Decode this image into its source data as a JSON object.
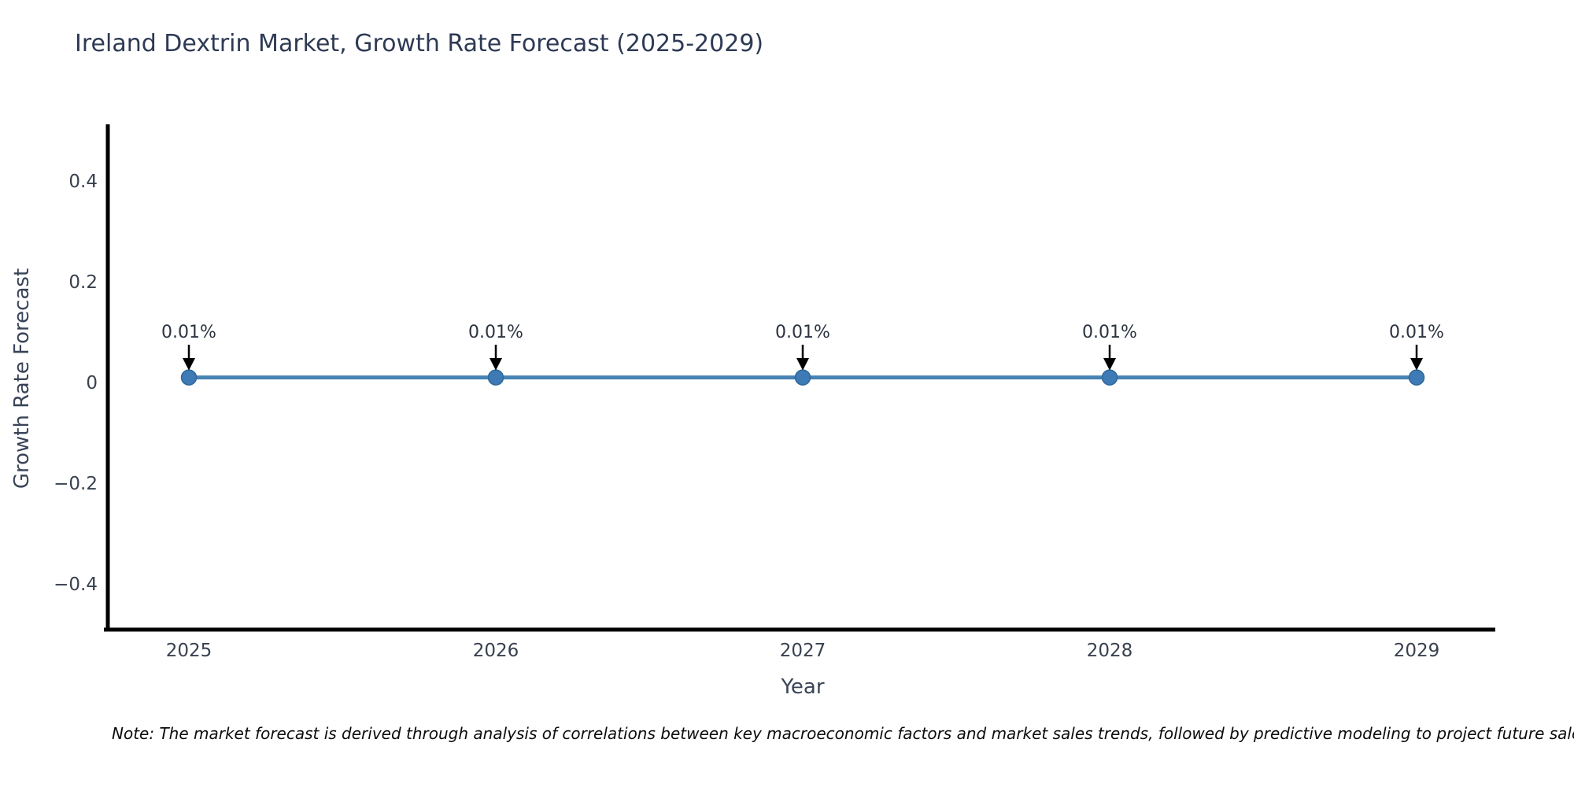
{
  "title": "Ireland Dextrin Market, Growth Rate Forecast (2025-2029)",
  "note": "Note: The market forecast is derived through analysis of correlations between key macroeconomic factors and market sales trends, followed by predictive modeling to project future sales",
  "chart_data": {
    "type": "line",
    "title": "Ireland Dextrin Market, Growth Rate Forecast (2025-2029)",
    "xlabel": "Year",
    "ylabel": "Growth Rate Forecast",
    "categories": [
      "2025",
      "2026",
      "2027",
      "2028",
      "2029"
    ],
    "series": [
      {
        "name": "Growth Rate Forecast",
        "values": [
          0.01,
          0.01,
          0.01,
          0.01,
          0.01
        ]
      }
    ],
    "point_labels": [
      "0.01%",
      "0.01%",
      "0.01%",
      "0.01%",
      "0.01%"
    ],
    "ylim": [
      -0.49,
      0.51
    ],
    "yticks": [
      {
        "value": 0.4,
        "label": "0.4"
      },
      {
        "value": 0.2,
        "label": "0.2"
      },
      {
        "value": 0,
        "label": "0"
      },
      {
        "value": -0.2,
        "label": "−0.2"
      },
      {
        "value": -0.4,
        "label": "−0.4"
      }
    ],
    "grid": false,
    "legend": "none",
    "colors": {
      "line": "#4682b4",
      "marker_fill": "#3d7ab6",
      "marker_edge": "#2f6899",
      "annotation_arrow": "#000000",
      "axis_spine": "#000000"
    }
  }
}
